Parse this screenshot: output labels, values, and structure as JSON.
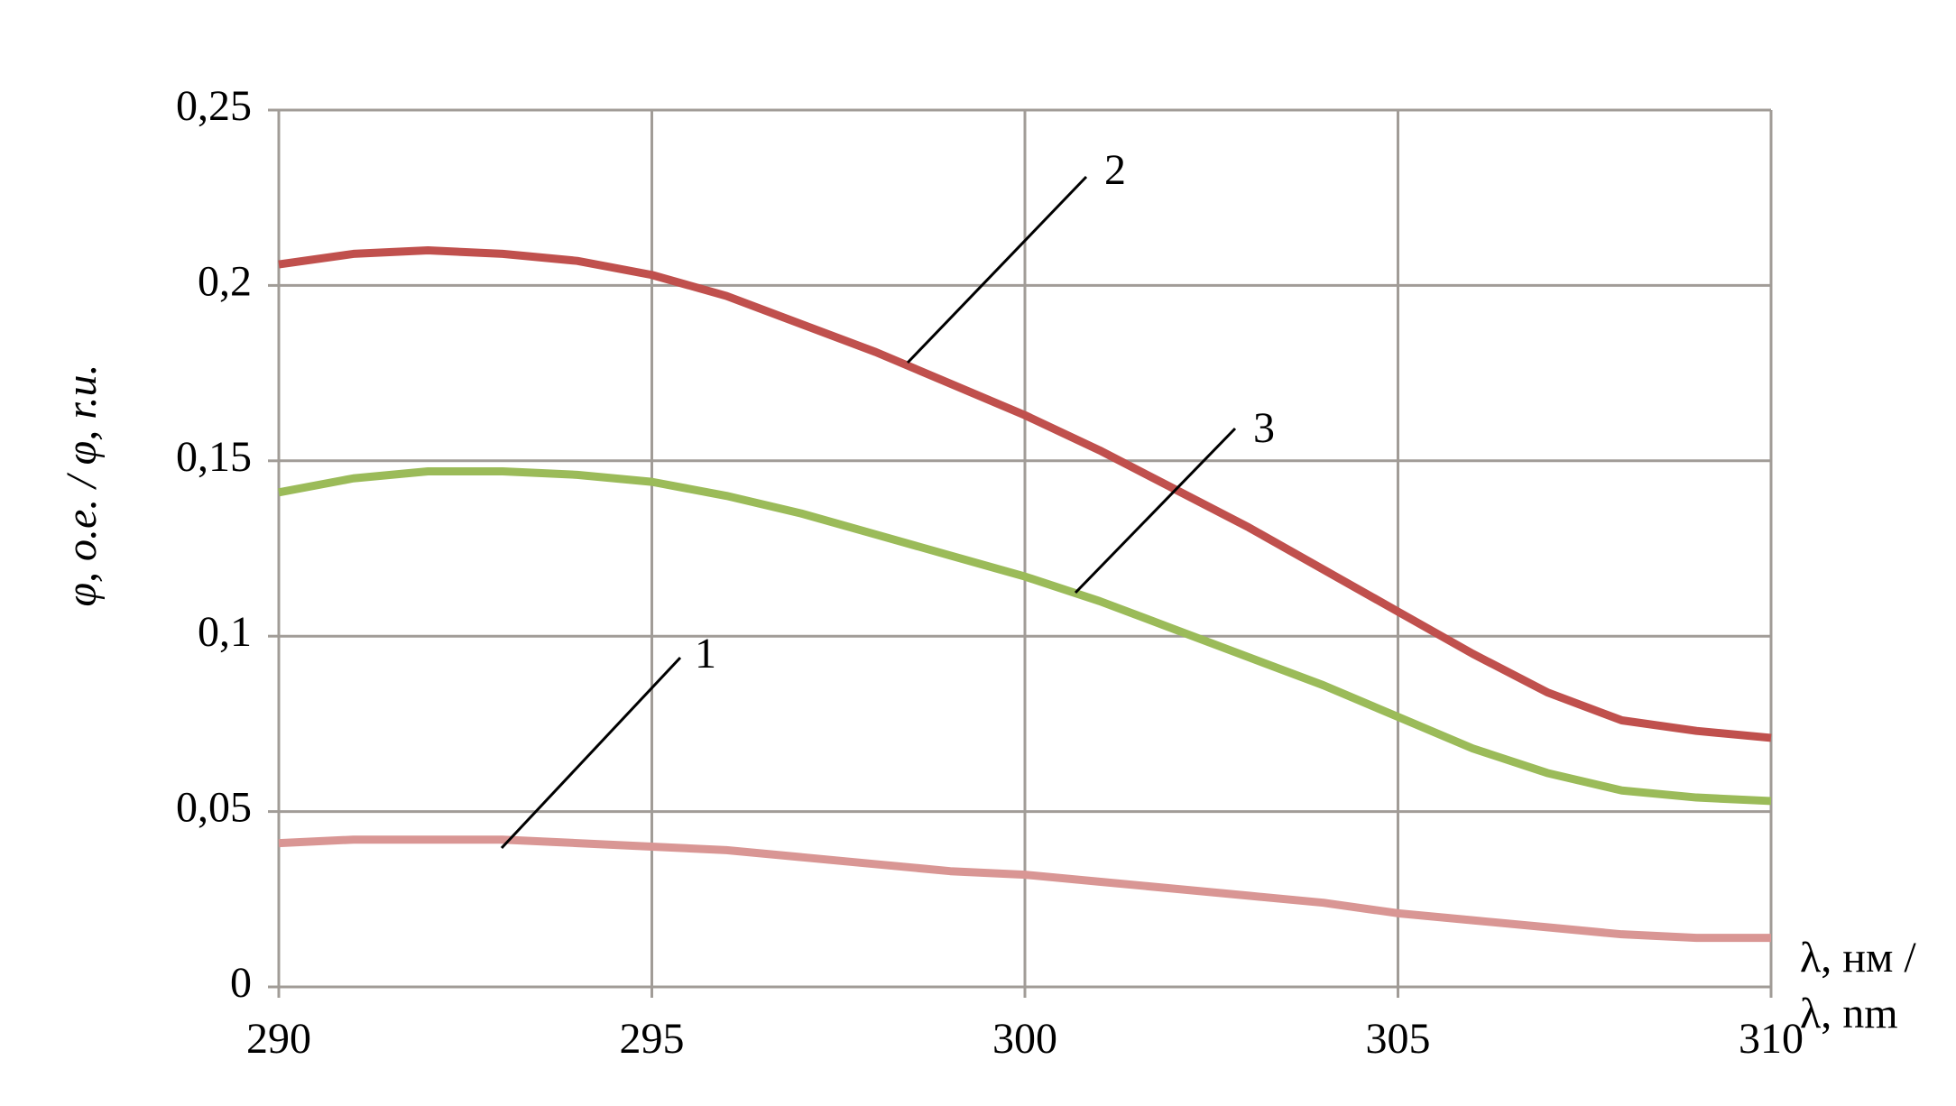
{
  "chart_data": {
    "type": "line",
    "y_label": "φ, о.е. / φ, r.u.",
    "x_label": [
      "λ, нм /",
      "λ, nm"
    ],
    "x": [
      290,
      291,
      292,
      293,
      294,
      295,
      296,
      297,
      298,
      299,
      300,
      301,
      302,
      303,
      304,
      305,
      306,
      307,
      308,
      309,
      310
    ],
    "series": [
      {
        "name": "1",
        "color": "#d99694",
        "values": [
          0.041,
          0.042,
          0.042,
          0.042,
          0.041,
          0.04,
          0.039,
          0.037,
          0.035,
          0.033,
          0.032,
          0.03,
          0.028,
          0.026,
          0.024,
          0.021,
          0.019,
          0.017,
          0.015,
          0.014,
          0.014
        ]
      },
      {
        "name": "2",
        "color": "#c0504d",
        "values": [
          0.206,
          0.209,
          0.21,
          0.209,
          0.207,
          0.203,
          0.197,
          0.189,
          0.181,
          0.172,
          0.163,
          0.153,
          0.142,
          0.131,
          0.119,
          0.107,
          0.095,
          0.084,
          0.076,
          0.073,
          0.071
        ]
      },
      {
        "name": "3",
        "color": "#9bbb59",
        "values": [
          0.141,
          0.145,
          0.147,
          0.147,
          0.146,
          0.144,
          0.14,
          0.135,
          0.129,
          0.123,
          0.117,
          0.11,
          0.102,
          0.094,
          0.086,
          0.077,
          0.068,
          0.061,
          0.056,
          0.054,
          0.053
        ]
      }
    ],
    "xlim": [
      290,
      310
    ],
    "xticks": [
      290,
      295,
      300,
      305,
      310
    ],
    "ylim": [
      0,
      0.25
    ],
    "yticks": [
      0,
      {
        "value": 0.05,
        "label": "0,05"
      },
      {
        "value": 0.1,
        "label": "0,1"
      },
      {
        "value": 0.15,
        "label": "0,15"
      },
      {
        "value": 0.2,
        "label": "0,2"
      },
      {
        "value": 0.25,
        "label": "0,25"
      }
    ],
    "grid": true
  }
}
